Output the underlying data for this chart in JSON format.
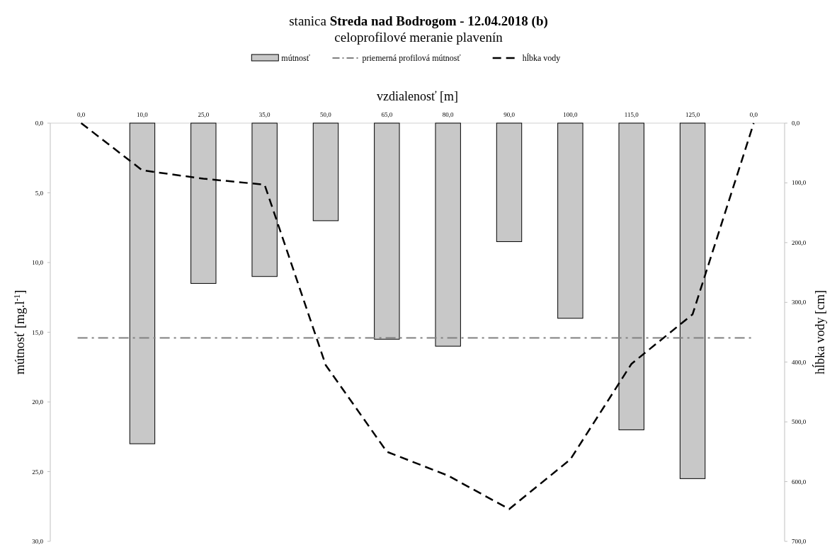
{
  "chart_data": {
    "type": "bar",
    "title": "stanica Streda nad Bodrogom - 12.04.2018 (b)",
    "subtitle": "celoprofilové meranie plavenín",
    "xlabel": "vzdialenosť [m]",
    "ylabel": "mútnosť [mg.l$^{-1}$]",
    "y2label": "hĺbka vody [cm]",
    "categories": [
      "0,0",
      "10,0",
      "25,0",
      "35,0",
      "50,0",
      "65,0",
      "80,0",
      "90,0",
      "100,0",
      "115,0",
      "125,0",
      "0,0"
    ],
    "series": [
      {
        "name": "mútnosť",
        "color": "#c8c8c8",
        "values": [
          null,
          23.0,
          11.5,
          11.0,
          7.0,
          15.5,
          16.0,
          8.5,
          14.0,
          22.0,
          25.5,
          null
        ]
      },
      {
        "name": "hĺbka vody",
        "type": "line",
        "axis": "y2",
        "color": "#000000",
        "line_style": "dashed",
        "marker": "none",
        "values": [
          0,
          79,
          93,
          103,
          405,
          550,
          590,
          646,
          563,
          403,
          320,
          0
        ]
      }
    ],
    "ref_lines": [
      {
        "axis": "y",
        "value": 15.4,
        "label": "priemerná profilová mútnosť",
        "color": "#808080"
      }
    ],
    "ylim": [
      30,
      0
    ],
    "yticks": [
      {
        "value": 0,
        "label": "0,0"
      },
      {
        "value": 5,
        "label": "5,0"
      },
      {
        "value": 10,
        "label": "10,0"
      },
      {
        "value": 15,
        "label": "15,0"
      },
      {
        "value": 20,
        "label": "20,0"
      },
      {
        "value": 25,
        "label": "25,0"
      },
      {
        "value": 30,
        "label": "30,0"
      }
    ],
    "y2lim": [
      700,
      0
    ],
    "y2ticks": [
      {
        "value": 0,
        "label": "0,0"
      },
      {
        "value": 100,
        "label": "100,0"
      },
      {
        "value": 200,
        "label": "200,0"
      },
      {
        "value": 300,
        "label": "300,0"
      },
      {
        "value": 400,
        "label": "400,0"
      },
      {
        "value": 500,
        "label": "500,0"
      },
      {
        "value": 600,
        "label": "600,0"
      },
      {
        "value": 700,
        "label": "700,0"
      }
    ],
    "legend": "top",
    "grid": false
  }
}
